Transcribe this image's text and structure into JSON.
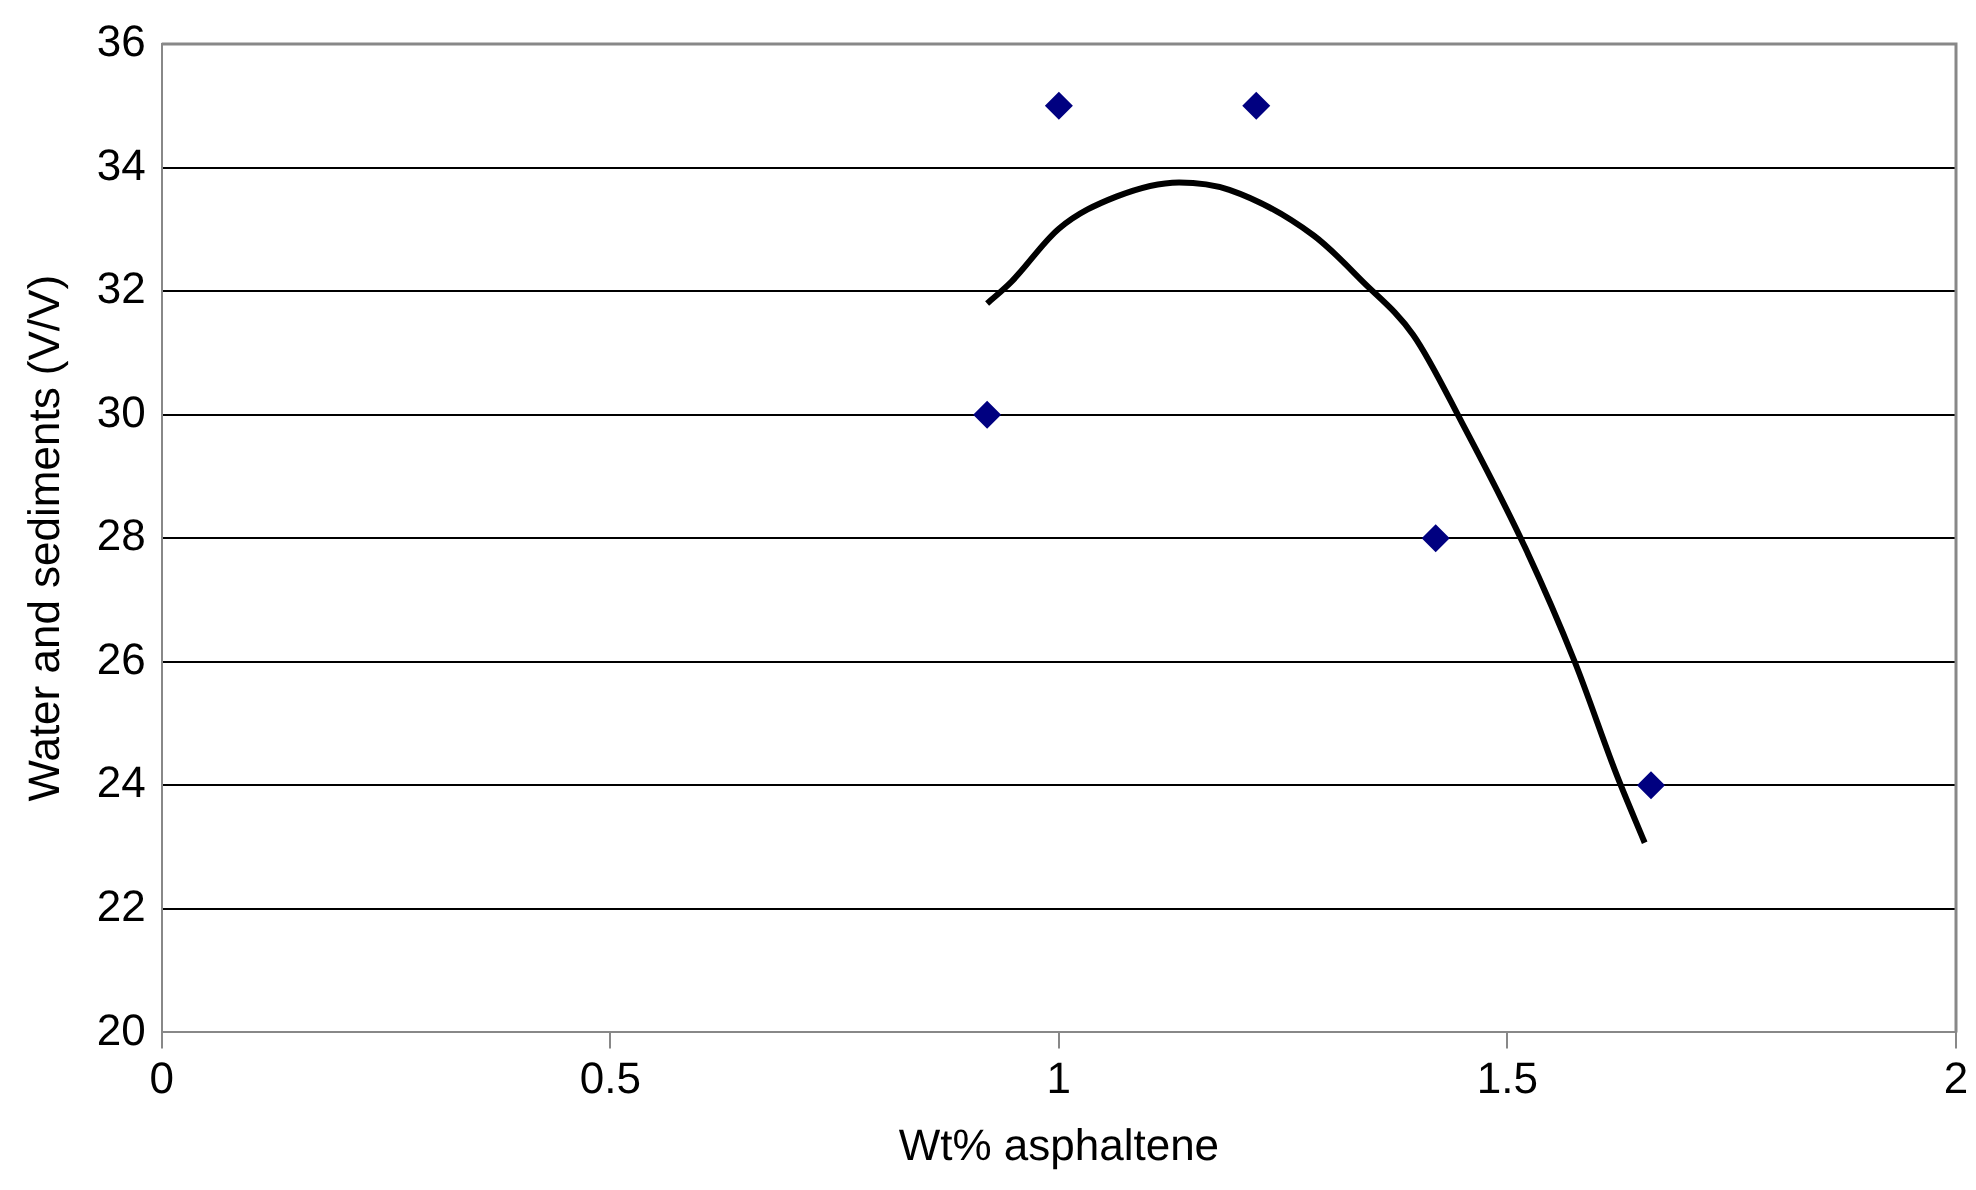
{
  "chart_data": {
    "type": "scatter",
    "xlabel": "Wt% asphaltene",
    "ylabel": "Water and sediments (V/V)",
    "xlim": [
      0,
      2
    ],
    "xticks": [
      0,
      0.5,
      1,
      1.5,
      2
    ],
    "ylim": [
      20,
      36
    ],
    "yticks": [
      20,
      22,
      24,
      26,
      28,
      30,
      32,
      34,
      36
    ],
    "grid": "y",
    "legend": false,
    "series": [
      {
        "color": "#000080",
        "marker": "diamond",
        "x": [
          0.92,
          1.0,
          1.22,
          1.42,
          1.66
        ],
        "values": [
          30,
          35,
          35,
          28,
          24
        ]
      },
      {
        "type": "line",
        "color": "#000000",
        "marker": "none",
        "x": [
          0.92,
          0.947,
          1.0,
          1.064,
          1.134,
          1.19,
          1.284,
          1.339,
          1.395,
          1.45,
          1.52,
          1.575,
          1.622,
          1.653
        ],
        "values": [
          31.8,
          32.15,
          33.01,
          33.53,
          33.76,
          33.64,
          32.9,
          32.15,
          31.29,
          29.85,
          27.84,
          26.0,
          24.16,
          23.07
        ]
      }
    ]
  }
}
